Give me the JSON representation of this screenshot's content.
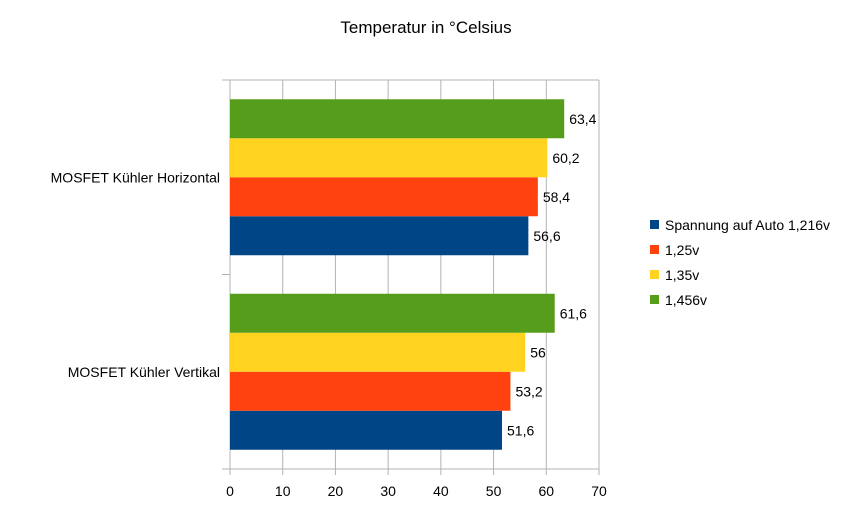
{
  "chart_data": {
    "type": "bar",
    "orientation": "horizontal",
    "title": "Temperatur in °Celsius",
    "categories": [
      "MOSFET Kühler Horizontal",
      "MOSFET Kühler Vertikal"
    ],
    "series": [
      {
        "name": "Spannung auf Auto 1,216v",
        "color": "#004586",
        "values": [
          56.6,
          51.6
        ],
        "labels": [
          "56,6",
          "51,6"
        ]
      },
      {
        "name": "1,25v",
        "color": "#ff420e",
        "values": [
          58.4,
          53.2
        ],
        "labels": [
          "58,4",
          "53,2"
        ]
      },
      {
        "name": "1,35v",
        "color": "#ffd320",
        "values": [
          60.2,
          56
        ],
        "labels": [
          "60,2",
          "56"
        ]
      },
      {
        "name": "1,456v",
        "color": "#579d1c",
        "values": [
          63.4,
          61.6
        ],
        "labels": [
          "63,4",
          "61,6"
        ]
      }
    ],
    "xlim": [
      0,
      70
    ],
    "xticks": [
      0,
      10,
      20,
      30,
      40,
      50,
      60,
      70
    ],
    "grid": true,
    "legend_position": "right"
  }
}
